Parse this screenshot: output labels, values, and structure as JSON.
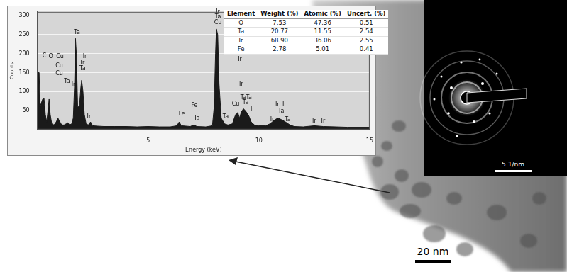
{
  "chart_data": {
    "type": "area",
    "x_label": "Energy (keV)",
    "y_label": "Counts",
    "color": "#1a1a1a",
    "x": [
      0.02,
      0.08,
      0.12,
      0.18,
      0.24,
      0.3,
      0.36,
      0.42,
      0.48,
      0.53,
      0.58,
      0.65,
      0.75,
      0.85,
      0.93,
      1.0,
      1.1,
      1.2,
      1.3,
      1.38,
      1.45,
      1.55,
      1.62,
      1.68,
      1.72,
      1.76,
      1.82,
      1.9,
      1.96,
      2.0,
      2.06,
      2.12,
      2.2,
      2.3,
      2.4,
      2.5,
      2.7,
      3.0,
      3.5,
      4.0,
      4.5,
      5.0,
      5.5,
      6.0,
      6.3,
      6.4,
      6.5,
      6.9,
      7.06,
      7.2,
      7.6,
      7.9,
      7.98,
      8.04,
      8.08,
      8.14,
      8.2,
      8.3,
      8.45,
      8.6,
      8.8,
      8.95,
      9.05,
      9.12,
      9.2,
      9.3,
      9.38,
      9.45,
      9.55,
      9.65,
      9.8,
      10.0,
      10.3,
      10.5,
      10.7,
      10.85,
      10.95,
      11.05,
      11.2,
      11.4,
      11.6,
      12.0,
      12.5,
      12.9,
      13.5,
      14.0,
      15.0
    ],
    "values": [
      150,
      150,
      60,
      70,
      80,
      82,
      40,
      20,
      50,
      80,
      40,
      15,
      12,
      20,
      30,
      22,
      12,
      12,
      15,
      18,
      12,
      15,
      30,
      120,
      240,
      200,
      60,
      60,
      110,
      130,
      100,
      40,
      15,
      12,
      20,
      10,
      9,
      8,
      8,
      8,
      7,
      8,
      7,
      7,
      10,
      20,
      10,
      8,
      12,
      8,
      7,
      10,
      60,
      200,
      265,
      250,
      120,
      30,
      15,
      12,
      15,
      40,
      45,
      30,
      45,
      55,
      50,
      45,
      35,
      20,
      12,
      10,
      10,
      15,
      25,
      30,
      28,
      25,
      20,
      12,
      8,
      7,
      10,
      8,
      7,
      6,
      6
    ],
    "xlim": [
      0,
      15
    ],
    "xticks": [
      5,
      10,
      15
    ],
    "ylim": [
      0,
      310
    ],
    "yticks": [
      50,
      100,
      150,
      200,
      250,
      300
    ],
    "grid": true,
    "annotations": [
      {
        "text": "C",
        "x": 0.32,
        "y": 187
      },
      {
        "text": "O",
        "x": 0.61,
        "y": 184
      },
      {
        "text": "Cu",
        "x": 1.02,
        "y": 184
      },
      {
        "text": "Cu",
        "x": 0.99,
        "y": 160
      },
      {
        "text": "Cu",
        "x": 0.99,
        "y": 140
      },
      {
        "text": "Ta",
        "x": 1.34,
        "y": 120
      },
      {
        "text": "Ir",
        "x": 1.63,
        "y": 110
      },
      {
        "text": "Ta",
        "x": 1.79,
        "y": 249
      },
      {
        "text": "Ir",
        "x": 2.14,
        "y": 185
      },
      {
        "text": "Ir",
        "x": 2.04,
        "y": 168
      },
      {
        "text": "Ta",
        "x": 2.04,
        "y": 152
      },
      {
        "text": "Ir",
        "x": 2.33,
        "y": 26
      },
      {
        "text": "Fe",
        "x": 6.52,
        "y": 33
      },
      {
        "text": "Fe",
        "x": 7.09,
        "y": 55
      },
      {
        "text": "Ta",
        "x": 7.19,
        "y": 22
      },
      {
        "text": "Ir",
        "x": 8.15,
        "y": 303
      },
      {
        "text": "Ta",
        "x": 8.15,
        "y": 289
      },
      {
        "text": "Cu",
        "x": 8.15,
        "y": 275
      },
      {
        "text": "Ta",
        "x": 8.5,
        "y": 26
      },
      {
        "text": "Cu",
        "x": 8.95,
        "y": 60
      },
      {
        "text": "Ir",
        "x": 9.14,
        "y": 177
      },
      {
        "text": "Ir",
        "x": 9.2,
        "y": 111
      },
      {
        "text": "Ta",
        "x": 9.3,
        "y": 77
      },
      {
        "text": "Ta",
        "x": 9.55,
        "y": 77
      },
      {
        "text": "Ta",
        "x": 9.4,
        "y": 63
      },
      {
        "text": "Ir",
        "x": 9.71,
        "y": 45
      },
      {
        "text": "Ir",
        "x": 10.6,
        "y": 19
      },
      {
        "text": "Ir",
        "x": 10.83,
        "y": 57
      },
      {
        "text": "Ir",
        "x": 11.15,
        "y": 57
      },
      {
        "text": "Ta",
        "x": 11.0,
        "y": 41
      },
      {
        "text": "Ta",
        "x": 11.3,
        "y": 19
      },
      {
        "text": "Ir",
        "x": 12.5,
        "y": 15
      },
      {
        "text": "Ir",
        "x": 12.9,
        "y": 15
      }
    ]
  },
  "table": {
    "header": [
      "Element",
      "Weight (%)",
      "Atomic (%)",
      "Uncert. (%)"
    ],
    "rows": [
      [
        "O",
        "7.53",
        "47.36",
        "0.51"
      ],
      [
        "Ta",
        "20.77",
        "11.55",
        "2.54"
      ],
      [
        "Ir",
        "68.90",
        "36.06",
        "2.55"
      ],
      [
        "Fe",
        "2.78",
        "5.01",
        "0.41"
      ]
    ]
  },
  "micrograph": {
    "scale_bar": "20 nm",
    "inset_scale_bar": "5 1/nm"
  }
}
